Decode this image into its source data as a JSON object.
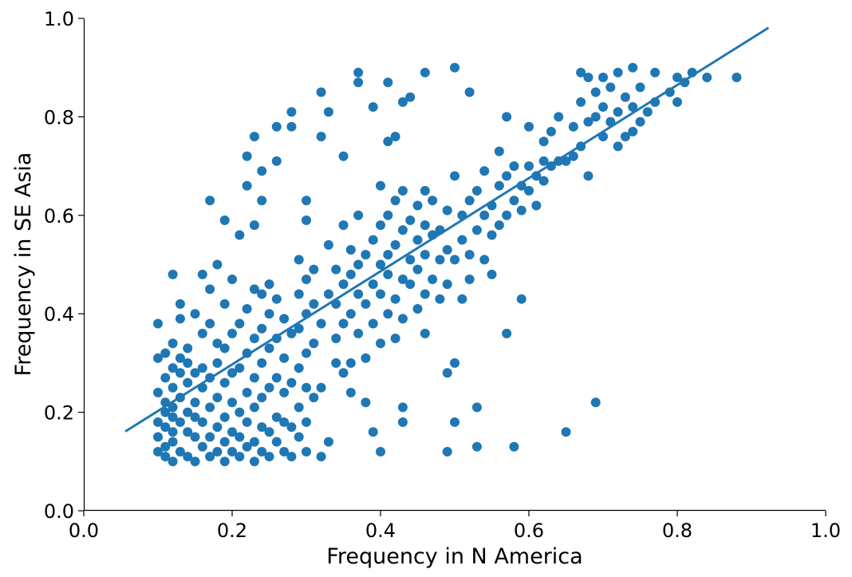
{
  "chart_data": {
    "type": "scatter",
    "title": "",
    "xlabel": "Frequency in N America",
    "ylabel": "Frequency in SE Asia",
    "xlim": [
      0.0,
      1.0
    ],
    "ylim": [
      0.0,
      1.0
    ],
    "xticks": [
      "0.0",
      "0.2",
      "0.4",
      "0.6",
      "0.8",
      "1.0"
    ],
    "yticks": [
      "0.0",
      "0.2",
      "0.4",
      "0.6",
      "0.8",
      "1.0"
    ],
    "grid": false,
    "legend": "none",
    "color": "#1f77b4",
    "trend_line": {
      "x": [
        0.056,
        0.923
      ],
      "y": [
        0.161,
        0.981
      ]
    },
    "points": [
      [
        0.1,
        0.12
      ],
      [
        0.1,
        0.15
      ],
      [
        0.1,
        0.18
      ],
      [
        0.1,
        0.24
      ],
      [
        0.1,
        0.31
      ],
      [
        0.1,
        0.38
      ],
      [
        0.11,
        0.11
      ],
      [
        0.11,
        0.13
      ],
      [
        0.11,
        0.17
      ],
      [
        0.11,
        0.2
      ],
      [
        0.11,
        0.22
      ],
      [
        0.11,
        0.27
      ],
      [
        0.11,
        0.32
      ],
      [
        0.12,
        0.1
      ],
      [
        0.12,
        0.14
      ],
      [
        0.12,
        0.16
      ],
      [
        0.12,
        0.19
      ],
      [
        0.12,
        0.21
      ],
      [
        0.12,
        0.25
      ],
      [
        0.12,
        0.29
      ],
      [
        0.12,
        0.34
      ],
      [
        0.12,
        0.48
      ],
      [
        0.13,
        0.12
      ],
      [
        0.13,
        0.18
      ],
      [
        0.13,
        0.23
      ],
      [
        0.13,
        0.28
      ],
      [
        0.13,
        0.31
      ],
      [
        0.13,
        0.39
      ],
      [
        0.13,
        0.42
      ],
      [
        0.14,
        0.11
      ],
      [
        0.14,
        0.16
      ],
      [
        0.14,
        0.2
      ],
      [
        0.14,
        0.26
      ],
      [
        0.14,
        0.3
      ],
      [
        0.14,
        0.33
      ],
      [
        0.15,
        0.1
      ],
      [
        0.15,
        0.15
      ],
      [
        0.15,
        0.19
      ],
      [
        0.15,
        0.22
      ],
      [
        0.15,
        0.28
      ],
      [
        0.15,
        0.4
      ],
      [
        0.16,
        0.13
      ],
      [
        0.16,
        0.18
      ],
      [
        0.16,
        0.25
      ],
      [
        0.16,
        0.29
      ],
      [
        0.16,
        0.36
      ],
      [
        0.16,
        0.48
      ],
      [
        0.17,
        0.11
      ],
      [
        0.17,
        0.15
      ],
      [
        0.17,
        0.21
      ],
      [
        0.17,
        0.27
      ],
      [
        0.17,
        0.38
      ],
      [
        0.17,
        0.45
      ],
      [
        0.17,
        0.63
      ],
      [
        0.18,
        0.12
      ],
      [
        0.18,
        0.17
      ],
      [
        0.18,
        0.23
      ],
      [
        0.18,
        0.3
      ],
      [
        0.18,
        0.34
      ],
      [
        0.18,
        0.5
      ],
      [
        0.19,
        0.1
      ],
      [
        0.19,
        0.14
      ],
      [
        0.19,
        0.19
      ],
      [
        0.19,
        0.26
      ],
      [
        0.19,
        0.33
      ],
      [
        0.19,
        0.42
      ],
      [
        0.19,
        0.59
      ],
      [
        0.2,
        0.12
      ],
      [
        0.2,
        0.16
      ],
      [
        0.2,
        0.22
      ],
      [
        0.2,
        0.28
      ],
      [
        0.2,
        0.36
      ],
      [
        0.2,
        0.47
      ],
      [
        0.21,
        0.11
      ],
      [
        0.21,
        0.15
      ],
      [
        0.21,
        0.2
      ],
      [
        0.21,
        0.29
      ],
      [
        0.21,
        0.38
      ],
      [
        0.21,
        0.56
      ],
      [
        0.22,
        0.13
      ],
      [
        0.22,
        0.18
      ],
      [
        0.22,
        0.24
      ],
      [
        0.22,
        0.32
      ],
      [
        0.22,
        0.41
      ],
      [
        0.22,
        0.66
      ],
      [
        0.22,
        0.72
      ],
      [
        0.23,
        0.1
      ],
      [
        0.23,
        0.14
      ],
      [
        0.23,
        0.21
      ],
      [
        0.23,
        0.27
      ],
      [
        0.23,
        0.35
      ],
      [
        0.23,
        0.45
      ],
      [
        0.23,
        0.58
      ],
      [
        0.23,
        0.76
      ],
      [
        0.24,
        0.12
      ],
      [
        0.24,
        0.17
      ],
      [
        0.24,
        0.23
      ],
      [
        0.24,
        0.3
      ],
      [
        0.24,
        0.37
      ],
      [
        0.24,
        0.44
      ],
      [
        0.24,
        0.63
      ],
      [
        0.24,
        0.69
      ],
      [
        0.25,
        0.11
      ],
      [
        0.25,
        0.16
      ],
      [
        0.25,
        0.25
      ],
      [
        0.25,
        0.33
      ],
      [
        0.25,
        0.4
      ],
      [
        0.25,
        0.46
      ],
      [
        0.26,
        0.14
      ],
      [
        0.26,
        0.19
      ],
      [
        0.26,
        0.27
      ],
      [
        0.26,
        0.35
      ],
      [
        0.26,
        0.43
      ],
      [
        0.26,
        0.71
      ],
      [
        0.26,
        0.78
      ],
      [
        0.27,
        0.12
      ],
      [
        0.27,
        0.18
      ],
      [
        0.27,
        0.24
      ],
      [
        0.27,
        0.31
      ],
      [
        0.27,
        0.39
      ],
      [
        0.28,
        0.11
      ],
      [
        0.28,
        0.17
      ],
      [
        0.28,
        0.26
      ],
      [
        0.28,
        0.36
      ],
      [
        0.28,
        0.78
      ],
      [
        0.28,
        0.81
      ],
      [
        0.29,
        0.15
      ],
      [
        0.29,
        0.21
      ],
      [
        0.29,
        0.29
      ],
      [
        0.29,
        0.37
      ],
      [
        0.29,
        0.44
      ],
      [
        0.29,
        0.51
      ],
      [
        0.3,
        0.12
      ],
      [
        0.3,
        0.18
      ],
      [
        0.3,
        0.25
      ],
      [
        0.3,
        0.32
      ],
      [
        0.3,
        0.4
      ],
      [
        0.3,
        0.47
      ],
      [
        0.3,
        0.59
      ],
      [
        0.3,
        0.63
      ],
      [
        0.31,
        0.23
      ],
      [
        0.31,
        0.34
      ],
      [
        0.31,
        0.42
      ],
      [
        0.31,
        0.49
      ],
      [
        0.32,
        0.11
      ],
      [
        0.32,
        0.25
      ],
      [
        0.32,
        0.38
      ],
      [
        0.32,
        0.76
      ],
      [
        0.32,
        0.85
      ],
      [
        0.33,
        0.14
      ],
      [
        0.33,
        0.44
      ],
      [
        0.33,
        0.54
      ],
      [
        0.33,
        0.81
      ],
      [
        0.34,
        0.3
      ],
      [
        0.34,
        0.35
      ],
      [
        0.34,
        0.42
      ],
      [
        0.34,
        0.49
      ],
      [
        0.35,
        0.28
      ],
      [
        0.35,
        0.38
      ],
      [
        0.35,
        0.46
      ],
      [
        0.35,
        0.58
      ],
      [
        0.35,
        0.72
      ],
      [
        0.36,
        0.24
      ],
      [
        0.36,
        0.3
      ],
      [
        0.36,
        0.4
      ],
      [
        0.36,
        0.48
      ],
      [
        0.36,
        0.53
      ],
      [
        0.37,
        0.36
      ],
      [
        0.37,
        0.44
      ],
      [
        0.37,
        0.5
      ],
      [
        0.37,
        0.6
      ],
      [
        0.37,
        0.87
      ],
      [
        0.37,
        0.89
      ],
      [
        0.38,
        0.22
      ],
      [
        0.38,
        0.31
      ],
      [
        0.38,
        0.42
      ],
      [
        0.38,
        0.52
      ],
      [
        0.39,
        0.16
      ],
      [
        0.39,
        0.38
      ],
      [
        0.39,
        0.46
      ],
      [
        0.39,
        0.55
      ],
      [
        0.39,
        0.82
      ],
      [
        0.4,
        0.12
      ],
      [
        0.4,
        0.34
      ],
      [
        0.4,
        0.44
      ],
      [
        0.4,
        0.5
      ],
      [
        0.4,
        0.58
      ],
      [
        0.4,
        0.66
      ],
      [
        0.41,
        0.4
      ],
      [
        0.41,
        0.48
      ],
      [
        0.41,
        0.52
      ],
      [
        0.41,
        0.6
      ],
      [
        0.41,
        0.75
      ],
      [
        0.41,
        0.87
      ],
      [
        0.42,
        0.35
      ],
      [
        0.42,
        0.43
      ],
      [
        0.42,
        0.54
      ],
      [
        0.42,
        0.63
      ],
      [
        0.42,
        0.76
      ],
      [
        0.43,
        0.18
      ],
      [
        0.43,
        0.21
      ],
      [
        0.43,
        0.39
      ],
      [
        0.43,
        0.47
      ],
      [
        0.43,
        0.57
      ],
      [
        0.43,
        0.65
      ],
      [
        0.43,
        0.83
      ],
      [
        0.44,
        0.46
      ],
      [
        0.44,
        0.51
      ],
      [
        0.44,
        0.59
      ],
      [
        0.44,
        0.84
      ],
      [
        0.45,
        0.41
      ],
      [
        0.45,
        0.49
      ],
      [
        0.45,
        0.55
      ],
      [
        0.45,
        0.62
      ],
      [
        0.46,
        0.36
      ],
      [
        0.46,
        0.44
      ],
      [
        0.46,
        0.52
      ],
      [
        0.46,
        0.58
      ],
      [
        0.46,
        0.65
      ],
      [
        0.46,
        0.89
      ],
      [
        0.47,
        0.47
      ],
      [
        0.47,
        0.56
      ],
      [
        0.47,
        0.63
      ],
      [
        0.48,
        0.43
      ],
      [
        0.48,
        0.51
      ],
      [
        0.48,
        0.57
      ],
      [
        0.49,
        0.12
      ],
      [
        0.49,
        0.28
      ],
      [
        0.49,
        0.46
      ],
      [
        0.49,
        0.53
      ],
      [
        0.49,
        0.61
      ],
      [
        0.5,
        0.18
      ],
      [
        0.5,
        0.3
      ],
      [
        0.5,
        0.51
      ],
      [
        0.5,
        0.68
      ],
      [
        0.5,
        0.9
      ],
      [
        0.51,
        0.43
      ],
      [
        0.51,
        0.55
      ],
      [
        0.51,
        0.6
      ],
      [
        0.52,
        0.47
      ],
      [
        0.52,
        0.52
      ],
      [
        0.52,
        0.63
      ],
      [
        0.52,
        0.85
      ],
      [
        0.53,
        0.13
      ],
      [
        0.53,
        0.21
      ],
      [
        0.53,
        0.57
      ],
      [
        0.53,
        0.65
      ],
      [
        0.54,
        0.51
      ],
      [
        0.54,
        0.6
      ],
      [
        0.54,
        0.69
      ],
      [
        0.55,
        0.48
      ],
      [
        0.55,
        0.56
      ],
      [
        0.55,
        0.62
      ],
      [
        0.56,
        0.58
      ],
      [
        0.56,
        0.66
      ],
      [
        0.56,
        0.73
      ],
      [
        0.57,
        0.36
      ],
      [
        0.57,
        0.6
      ],
      [
        0.57,
        0.68
      ],
      [
        0.57,
        0.8
      ],
      [
        0.58,
        0.13
      ],
      [
        0.58,
        0.63
      ],
      [
        0.58,
        0.7
      ],
      [
        0.59,
        0.43
      ],
      [
        0.59,
        0.61
      ],
      [
        0.59,
        0.66
      ],
      [
        0.6,
        0.65
      ],
      [
        0.6,
        0.7
      ],
      [
        0.6,
        0.78
      ],
      [
        0.61,
        0.62
      ],
      [
        0.61,
        0.68
      ],
      [
        0.62,
        0.67
      ],
      [
        0.62,
        0.71
      ],
      [
        0.62,
        0.75
      ],
      [
        0.63,
        0.7
      ],
      [
        0.63,
        0.77
      ],
      [
        0.64,
        0.71
      ],
      [
        0.64,
        0.8
      ],
      [
        0.65,
        0.16
      ],
      [
        0.65,
        0.71
      ],
      [
        0.66,
        0.72
      ],
      [
        0.66,
        0.78
      ],
      [
        0.67,
        0.74
      ],
      [
        0.67,
        0.83
      ],
      [
        0.67,
        0.89
      ],
      [
        0.68,
        0.68
      ],
      [
        0.68,
        0.79
      ],
      [
        0.68,
        0.88
      ],
      [
        0.69,
        0.22
      ],
      [
        0.69,
        0.8
      ],
      [
        0.69,
        0.85
      ],
      [
        0.7,
        0.76
      ],
      [
        0.7,
        0.82
      ],
      [
        0.7,
        0.88
      ],
      [
        0.71,
        0.79
      ],
      [
        0.71,
        0.86
      ],
      [
        0.72,
        0.74
      ],
      [
        0.72,
        0.81
      ],
      [
        0.72,
        0.89
      ],
      [
        0.73,
        0.76
      ],
      [
        0.73,
        0.84
      ],
      [
        0.74,
        0.77
      ],
      [
        0.74,
        0.82
      ],
      [
        0.74,
        0.9
      ],
      [
        0.75,
        0.79
      ],
      [
        0.75,
        0.86
      ],
      [
        0.76,
        0.81
      ],
      [
        0.77,
        0.83
      ],
      [
        0.77,
        0.89
      ],
      [
        0.79,
        0.85
      ],
      [
        0.8,
        0.83
      ],
      [
        0.8,
        0.88
      ],
      [
        0.81,
        0.87
      ],
      [
        0.82,
        0.89
      ],
      [
        0.84,
        0.88
      ],
      [
        0.88,
        0.88
      ]
    ]
  }
}
